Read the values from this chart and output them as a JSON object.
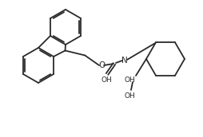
{
  "background_color": "#ffffff",
  "line_color": "#2a2a2a",
  "line_width": 1.3,
  "font_size": 7.0,
  "text_color": "#2a2a2a",
  "figsize": [
    2.55,
    1.72
  ],
  "dpi": 100,
  "xlim": [
    0,
    255
  ],
  "ylim": [
    0,
    172
  ]
}
